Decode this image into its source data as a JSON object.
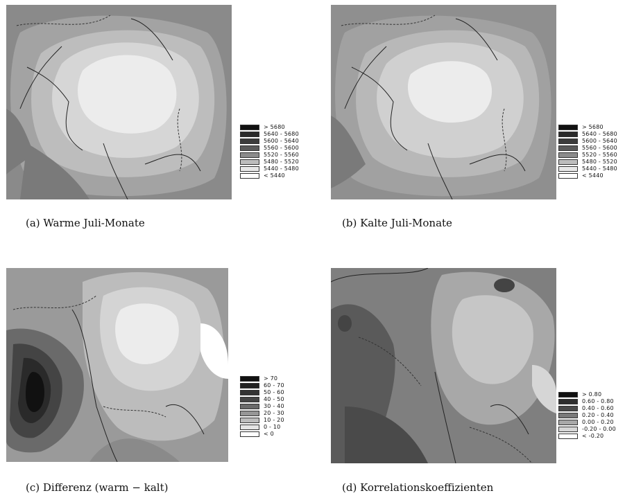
{
  "panels": [
    {
      "caption": "(a) Warme Juli-Monate",
      "legend": [
        "> 5680",
        "5640 - 5680",
        "5600 - 5640",
        "5560 - 5600",
        "5520 - 5560",
        "5480 - 5520",
        "5440 - 5480",
        "< 5440"
      ],
      "colors": [
        "#111111",
        "#2a2a2a",
        "#3c3c3c",
        "#5a5a5a",
        "#8c8c8c",
        "#bdbdbd",
        "#e8e8e8",
        "#ffffff"
      ]
    },
    {
      "caption": "(b) Kalte Juli-Monate",
      "legend": [
        "> 5680",
        "5640 - 5680",
        "5600 - 5640",
        "5560 - 5600",
        "5520 - 5560",
        "5480 - 5520",
        "5440 - 5480",
        "< 5440"
      ],
      "colors": [
        "#111111",
        "#2a2a2a",
        "#3c3c3c",
        "#5a5a5a",
        "#8c8c8c",
        "#bdbdbd",
        "#e8e8e8",
        "#ffffff"
      ]
    },
    {
      "caption": "(c) Differenz (warm − kalt)",
      "legend": [
        "> 70",
        "60 - 70",
        "50 - 60",
        "40 - 50",
        "30 - 40",
        "20 - 30",
        "10 - 20",
        "0 - 10",
        "< 0"
      ],
      "colors": [
        "#111111",
        "#222222",
        "#333333",
        "#444444",
        "#6a6a6a",
        "#969696",
        "#bcbcbc",
        "#e4e4e4",
        "#ffffff"
      ]
    },
    {
      "caption": "(d) Korrelationskoeffizienten",
      "legend": [
        "> 0.80",
        "0.60 - 0.80",
        "0.40 - 0.60",
        "0.20 - 0.40",
        "0.00 - 0.20",
        "-0.20 - 0.00",
        "< -0.20"
      ],
      "colors": [
        "#111111",
        "#2e2e2e",
        "#4a4a4a",
        "#7a7a7a",
        "#a8a8a8",
        "#d6d6d6",
        "#ffffff"
      ]
    }
  ]
}
